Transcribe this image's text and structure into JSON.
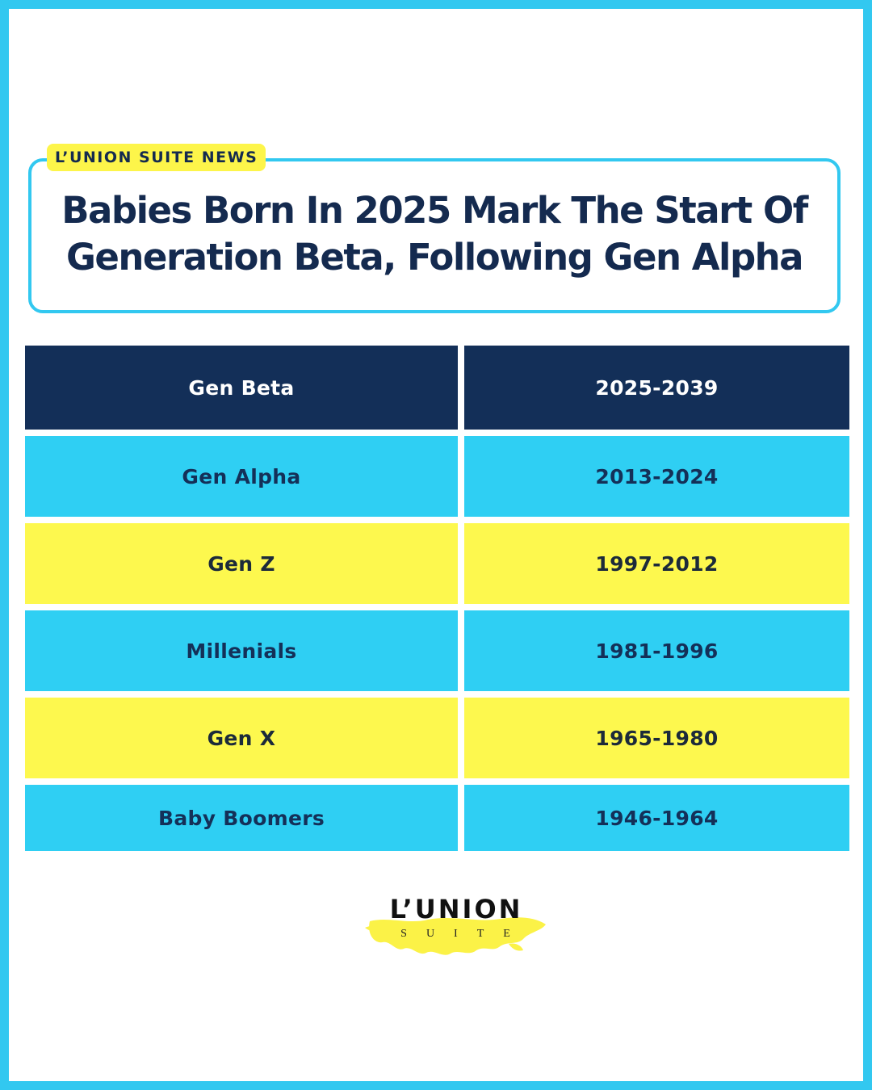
{
  "tag": "L’UNION SUITE NEWS",
  "headline": {
    "line1": "Babies Born In 2025 Mark The Start Of",
    "line2": "Generation Beta, Following Gen Alpha"
  },
  "table": {
    "rows": [
      {
        "generation": "Gen Beta",
        "years": "2025-2039",
        "style": "dark"
      },
      {
        "generation": "Gen Alpha",
        "years": "2013-2024",
        "style": "blue"
      },
      {
        "generation": "Gen Z",
        "years": "1997-2012",
        "style": "yellow"
      },
      {
        "generation": "Millenials",
        "years": "1981-1996",
        "style": "blue"
      },
      {
        "generation": "Gen X",
        "years": "1965-1980",
        "style": "yellow"
      },
      {
        "generation": "Baby Boomers",
        "years": "1946-1964",
        "style": "blue"
      }
    ]
  },
  "logo": {
    "word": "L’UNION",
    "sub": "SUITE"
  },
  "colors": {
    "frame": "#32c8f0",
    "navy": "#132f58",
    "sky": "#2fcff3",
    "yellow": "#fdf84e"
  }
}
